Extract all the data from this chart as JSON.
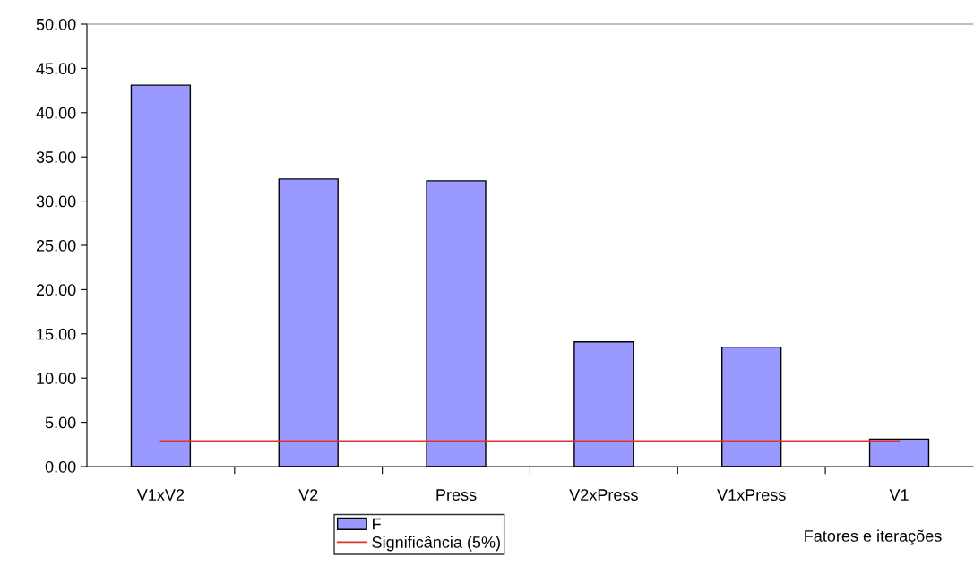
{
  "chart_data": {
    "type": "bar",
    "xlabel": "Fatores e iterações",
    "categories": [
      "V1xV2",
      "V2",
      "Press",
      "V2xPress",
      "V1xPress",
      "V1"
    ],
    "series": [
      {
        "name": "F",
        "color": "#9999ff",
        "values": [
          43.1,
          32.5,
          32.3,
          14.1,
          13.5,
          3.1
        ]
      },
      {
        "name": "Significância (5%)",
        "type": "line",
        "color": "#e03030",
        "values": [
          2.9,
          2.9,
          2.9,
          2.9,
          2.9,
          2.9
        ]
      }
    ],
    "ylim": [
      0,
      50
    ],
    "yticks": [
      {
        "value": 0,
        "label": "0.00"
      },
      {
        "value": 5,
        "label": "5.00"
      },
      {
        "value": 10,
        "label": "10.00"
      },
      {
        "value": 15,
        "label": "15.00"
      },
      {
        "value": 20,
        "label": "20.00"
      },
      {
        "value": 25,
        "label": "25.00"
      },
      {
        "value": 30,
        "label": "30.00"
      },
      {
        "value": 35,
        "label": "35.00"
      },
      {
        "value": 40,
        "label": "40.00"
      },
      {
        "value": 45,
        "label": "45.00"
      },
      {
        "value": 50,
        "label": "50.00"
      }
    ],
    "legend": "bottom",
    "grid": false
  }
}
